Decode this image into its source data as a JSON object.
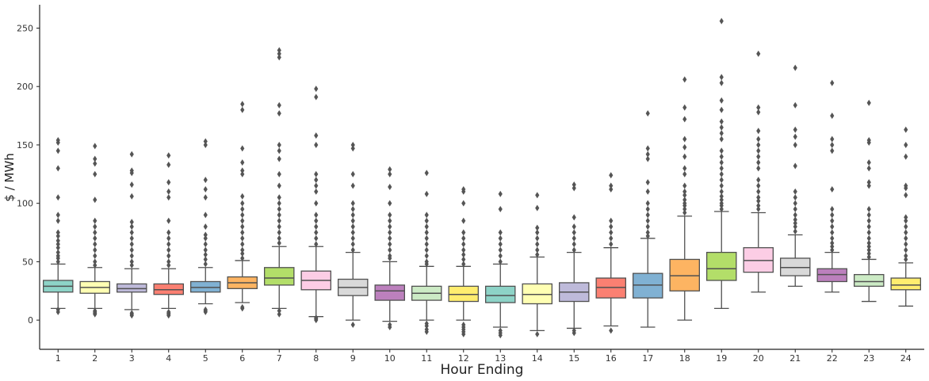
{
  "chart_data": {
    "type": "box",
    "xlabel": "Hour Ending",
    "ylabel": "$ / MWh",
    "ylim": [
      -25,
      270
    ],
    "yticks": [
      0,
      50,
      100,
      150,
      200,
      250
    ],
    "grid": false,
    "categories": [
      "1",
      "2",
      "3",
      "4",
      "5",
      "6",
      "7",
      "8",
      "9",
      "10",
      "11",
      "12",
      "13",
      "14",
      "15",
      "16",
      "17",
      "18",
      "19",
      "20",
      "21",
      "22",
      "23",
      "24"
    ],
    "colors": [
      "#8dd3c7",
      "#ffffb3",
      "#bebada",
      "#fb8072",
      "#80b1d3",
      "#fdb462",
      "#b3de69",
      "#fccde5",
      "#d9d9d9",
      "#bc80bd",
      "#ccebc5",
      "#ffed6f",
      "#8dd3c7",
      "#ffffb3",
      "#bebada",
      "#fb8072",
      "#80b1d3",
      "#fdb462",
      "#b3de69",
      "#fccde5",
      "#d9d9d9",
      "#bc80bd",
      "#ccebc5",
      "#ffed6f"
    ],
    "boxes": [
      {
        "whisker_low": 10,
        "q1": 24,
        "median": 29,
        "q3": 34,
        "whisker_high": 48,
        "outliers": [
          7,
          9,
          50,
          53,
          55,
          58,
          62,
          65,
          68,
          72,
          75,
          85,
          90,
          105,
          130,
          145,
          152,
          154
        ]
      },
      {
        "whisker_low": 10,
        "q1": 23,
        "median": 28,
        "q3": 33,
        "whisker_high": 45,
        "outliers": [
          5,
          6,
          7,
          8,
          47,
          50,
          55,
          60,
          65,
          70,
          75,
          80,
          85,
          103,
          125,
          134,
          138,
          149
        ]
      },
      {
        "whisker_low": 9,
        "q1": 24,
        "median": 27,
        "q3": 31,
        "whisker_high": 44,
        "outliers": [
          4,
          5,
          6,
          47,
          50,
          55,
          60,
          65,
          70,
          75,
          80,
          84,
          106,
          116,
          126,
          128,
          142
        ]
      },
      {
        "whisker_low": 10,
        "q1": 22,
        "median": 26,
        "q3": 31,
        "whisker_high": 44,
        "outliers": [
          4,
          5,
          6,
          7,
          47,
          50,
          55,
          60,
          65,
          70,
          75,
          85,
          105,
          110,
          118,
          133,
          141
        ]
      },
      {
        "whisker_low": 14,
        "q1": 24,
        "median": 28,
        "q3": 33,
        "whisker_high": 45,
        "outliers": [
          7,
          8,
          9,
          48,
          52,
          56,
          60,
          65,
          70,
          73,
          80,
          90,
          105,
          112,
          120,
          150,
          153
        ]
      },
      {
        "whisker_low": 15,
        "q1": 27,
        "median": 32,
        "q3": 37,
        "whisker_high": 51,
        "outliers": [
          10,
          11,
          53,
          57,
          60,
          65,
          70,
          75,
          80,
          85,
          90,
          95,
          100,
          106,
          125,
          128,
          135,
          147,
          180,
          185
        ]
      },
      {
        "whisker_low": 10,
        "q1": 30,
        "median": 36,
        "q3": 45,
        "whisker_high": 63,
        "outliers": [
          5,
          8,
          66,
          70,
          75,
          80,
          85,
          90,
          95,
          100,
          105,
          115,
          125,
          138,
          145,
          150,
          177,
          184,
          225,
          228,
          231
        ]
      },
      {
        "whisker_low": 3,
        "q1": 26,
        "median": 34,
        "q3": 42,
        "whisker_high": 63,
        "outliers": [
          0,
          1,
          2,
          65,
          70,
          75,
          80,
          85,
          90,
          100,
          110,
          115,
          120,
          125,
          150,
          158,
          191,
          198
        ]
      },
      {
        "whisker_low": 0,
        "q1": 21,
        "median": 28,
        "q3": 35,
        "whisker_high": 58,
        "outliers": [
          -4,
          60,
          65,
          70,
          75,
          80,
          85,
          90,
          95,
          100,
          115,
          125,
          147,
          150
        ]
      },
      {
        "whisker_low": -1,
        "q1": 17,
        "median": 25,
        "q3": 30,
        "whisker_high": 50,
        "outliers": [
          -6,
          -4,
          53,
          55,
          60,
          65,
          70,
          75,
          80,
          85,
          90,
          100,
          114,
          125,
          129
        ]
      },
      {
        "whisker_low": 0,
        "q1": 17,
        "median": 23,
        "q3": 29,
        "whisker_high": 46,
        "outliers": [
          -10,
          -8,
          -5,
          -3,
          48,
          50,
          55,
          60,
          65,
          70,
          75,
          80,
          85,
          90,
          108,
          126
        ]
      },
      {
        "whisker_low": 0,
        "q1": 16,
        "median": 22,
        "q3": 29,
        "whisker_high": 46,
        "outliers": [
          -12,
          -10,
          -8,
          -6,
          -4,
          48,
          52,
          56,
          60,
          65,
          70,
          75,
          85,
          100,
          110,
          112
        ]
      },
      {
        "whisker_low": -6,
        "q1": 15,
        "median": 21,
        "q3": 29,
        "whisker_high": 48,
        "outliers": [
          -13,
          -11,
          -9,
          50,
          55,
          60,
          65,
          70,
          75,
          95,
          108
        ]
      },
      {
        "whisker_low": -9,
        "q1": 14,
        "median": 22,
        "q3": 31,
        "whisker_high": 54,
        "outliers": [
          -12,
          56,
          60,
          65,
          70,
          75,
          79,
          96,
          107
        ]
      },
      {
        "whisker_low": -7,
        "q1": 16,
        "median": 24,
        "q3": 32,
        "whisker_high": 58,
        "outliers": [
          -11,
          -9,
          60,
          65,
          70,
          75,
          80,
          88,
          113,
          116
        ]
      },
      {
        "whisker_low": -5,
        "q1": 19,
        "median": 28,
        "q3": 36,
        "whisker_high": 62,
        "outliers": [
          -9,
          65,
          70,
          75,
          80,
          85,
          112,
          115,
          124
        ]
      },
      {
        "whisker_low": -6,
        "q1": 19,
        "median": 30,
        "q3": 40,
        "whisker_high": 70,
        "outliers": [
          72,
          75,
          80,
          85,
          90,
          95,
          100,
          110,
          118,
          138,
          142,
          147,
          177
        ]
      },
      {
        "whisker_low": 0,
        "q1": 25,
        "median": 38,
        "q3": 52,
        "whisker_high": 89,
        "outliers": [
          92,
          95,
          98,
          100,
          103,
          107,
          110,
          115,
          125,
          130,
          140,
          148,
          155,
          172,
          182,
          206
        ]
      },
      {
        "whisker_low": 10,
        "q1": 34,
        "median": 44,
        "q3": 58,
        "whisker_high": 93,
        "outliers": [
          95,
          98,
          100,
          103,
          106,
          110,
          115,
          120,
          125,
          130,
          135,
          140,
          145,
          155,
          160,
          165,
          170,
          180,
          188,
          203,
          208,
          256
        ]
      },
      {
        "whisker_low": 24,
        "q1": 41,
        "median": 51,
        "q3": 62,
        "whisker_high": 92,
        "outliers": [
          95,
          98,
          102,
          105,
          110,
          115,
          120,
          130,
          135,
          140,
          145,
          150,
          155,
          162,
          178,
          182,
          228
        ]
      },
      {
        "whisker_low": 29,
        "q1": 38,
        "median": 45,
        "q3": 53,
        "whisker_high": 73,
        "outliers": [
          76,
          80,
          83,
          86,
          90,
          95,
          100,
          105,
          110,
          132,
          150,
          157,
          163,
          184,
          216
        ]
      },
      {
        "whisker_low": 24,
        "q1": 33,
        "median": 39,
        "q3": 44,
        "whisker_high": 58,
        "outliers": [
          60,
          63,
          66,
          70,
          75,
          80,
          85,
          90,
          95,
          112,
          145,
          150,
          155,
          175,
          203
        ]
      },
      {
        "whisker_low": 16,
        "q1": 29,
        "median": 33,
        "q3": 39,
        "whisker_high": 52,
        "outliers": [
          54,
          57,
          60,
          63,
          66,
          70,
          75,
          80,
          85,
          90,
          95,
          115,
          118,
          130,
          135,
          152,
          154,
          186
        ]
      },
      {
        "whisker_low": 12,
        "q1": 26,
        "median": 30,
        "q3": 36,
        "whisker_high": 49,
        "outliers": [
          52,
          55,
          60,
          65,
          70,
          75,
          80,
          85,
          88,
          107,
          113,
          115,
          140,
          150,
          163
        ]
      }
    ]
  }
}
